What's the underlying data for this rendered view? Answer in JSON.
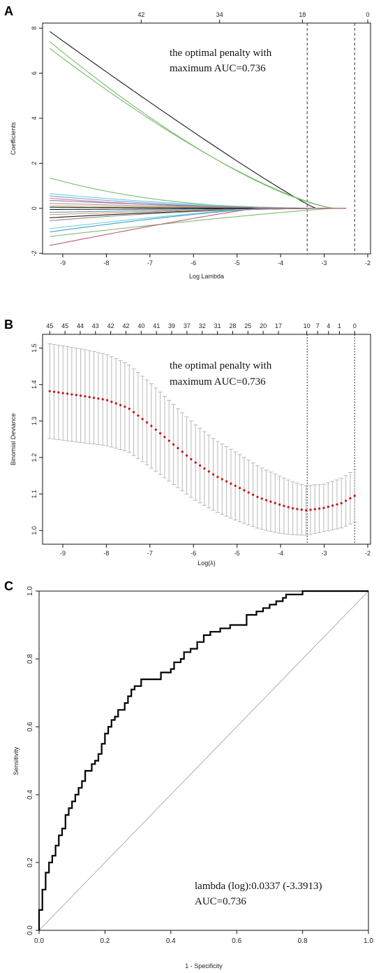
{
  "panels": [
    {
      "letter": "A",
      "chart_data": {
        "type": "line",
        "xlabel": "Log Lambda",
        "ylabel": "Coefficients",
        "xlim": [
          -9.4,
          -2.0
        ],
        "ylim": [
          -1.9,
          8.1
        ],
        "x_ticks": [
          -9,
          -8,
          -7,
          -6,
          -5,
          -4,
          -3,
          -2
        ],
        "y_ticks": [
          -2,
          0,
          2,
          4,
          6,
          8
        ],
        "top_axis": {
          "positions": [
            -7.2,
            -5.4,
            -3.5,
            -2.0
          ],
          "labels": [
            "42",
            "34",
            "18",
            "0"
          ]
        },
        "vlines": [
          -3.39,
          -2.3
        ],
        "annotation": [
          "the optimal penalty with",
          "maximum AUC=0.736"
        ],
        "series": [
          {
            "color": "#1a1a1a",
            "start": 7.85,
            "zero_at": -3.2,
            "shape": 1.08
          },
          {
            "color": "#7dbb6e",
            "start": 7.4,
            "zero_at": -2.75,
            "shape": 1.4
          },
          {
            "color": "#7dbb6e",
            "start": 7.1,
            "zero_at": -2.75,
            "shape": 1.35
          },
          {
            "color": "#7dbb6e",
            "start": 1.35,
            "zero_at": -2.75,
            "shape": 2.6
          },
          {
            "color": "#6fd0d6",
            "start": 0.65,
            "zero_at": -2.75,
            "shape": 1.8
          },
          {
            "color": "#7d9be0",
            "start": 0.55,
            "zero_at": -2.75,
            "shape": 2.0
          },
          {
            "color": "#e07a9a",
            "start": 0.45,
            "zero_at": -2.75,
            "shape": 2.2
          },
          {
            "color": "#8a8a8a",
            "start": 0.35,
            "zero_at": -2.75,
            "shape": 1.6
          },
          {
            "color": "#b48fd6",
            "start": 0.22,
            "zero_at": -2.75,
            "shape": 1.5
          },
          {
            "color": "#d6c24a",
            "start": 0.12,
            "zero_at": -2.75,
            "shape": 1.3
          },
          {
            "color": "#1a1a1a",
            "start": 0.05,
            "zero_at": -2.75,
            "shape": 1.2
          },
          {
            "color": "#1a1a1a",
            "start": -0.05,
            "zero_at": -2.75,
            "shape": 1.2
          },
          {
            "color": "#5a9fd4",
            "start": -0.18,
            "zero_at": -2.75,
            "shape": 1.4
          },
          {
            "color": "#e0a15a",
            "start": -0.28,
            "zero_at": -2.75,
            "shape": 1.5
          },
          {
            "color": "#1a1a1a",
            "start": -0.42,
            "zero_at": -2.75,
            "shape": 1.7
          },
          {
            "color": "#8a8a8a",
            "start": -0.55,
            "zero_at": -2.75,
            "shape": 1.9
          },
          {
            "color": "#3f9fd4",
            "start": -1.05,
            "zero_at": -4.2,
            "shape": 1.3
          },
          {
            "color": "#6fd0d6",
            "start": -0.9,
            "zero_at": -4.4,
            "shape": 1.2
          },
          {
            "color": "#7dbb6e",
            "start": -1.25,
            "zero_at": -2.75,
            "shape": 1.15
          },
          {
            "color": "#c45a78",
            "start": -1.65,
            "zero_at": -4.55,
            "shape": 1.1
          }
        ]
      }
    },
    {
      "letter": "B",
      "chart_data": {
        "type": "scatter",
        "xlabel": "Log(λ)",
        "ylabel": "Binomial Deviance",
        "xlim": [
          -9.4,
          -2.0
        ],
        "ylim": [
          0.97,
          1.53
        ],
        "x_ticks": [
          -9,
          -8,
          -7,
          -6,
          -5,
          -4,
          -3,
          -2
        ],
        "y_ticks": [
          1.0,
          1.1,
          1.2,
          1.3,
          1.4,
          1.5
        ],
        "top_axis": {
          "positions": [
            -9.3,
            -8.95,
            -8.6,
            -8.25,
            -7.9,
            -7.55,
            -7.2,
            -6.85,
            -6.5,
            -6.15,
            -5.8,
            -5.45,
            -5.1,
            -4.75,
            -4.4,
            -4.05,
            -3.4,
            -3.15,
            -2.9,
            -2.65,
            -2.3
          ],
          "labels": [
            "45",
            "45",
            "44",
            "43",
            "42",
            "42",
            "40",
            "41",
            "39",
            "37",
            "32",
            "31",
            "28",
            "25",
            "20",
            "17",
            "10",
            "7",
            "4",
            "1",
            "0"
          ]
        },
        "vlines": [
          -3.39,
          -2.3
        ],
        "annotation": [
          "the optimal penalty with",
          "maximum AUC=0.736"
        ],
        "mean_curve": {
          "x": [
            -9.3,
            -8.5,
            -8.0,
            -7.5,
            -7.0,
            -6.5,
            -6.0,
            -5.5,
            -5.0,
            -4.5,
            -4.0,
            -3.7,
            -3.4,
            -3.0,
            -2.6,
            -2.3
          ],
          "y": [
            1.382,
            1.368,
            1.358,
            1.336,
            1.29,
            1.24,
            1.19,
            1.15,
            1.12,
            1.09,
            1.07,
            1.06,
            1.055,
            1.062,
            1.075,
            1.095
          ]
        },
        "se_curve": {
          "x": [
            -9.3,
            -8.5,
            -8.0,
            -7.5,
            -7.0,
            -6.5,
            -6.0,
            -5.5,
            -5.0,
            -4.5,
            -4.0,
            -3.7,
            -3.4,
            -3.0,
            -2.6,
            -2.3
          ],
          "y": [
            0.13,
            0.128,
            0.125,
            0.12,
            0.116,
            0.11,
            0.104,
            0.098,
            0.093,
            0.085,
            0.078,
            0.072,
            0.068,
            0.065,
            0.068,
            0.072
          ]
        },
        "n_points": 70,
        "point_color": "#cc1111",
        "errorbar_color": "#b8b8b8"
      }
    },
    {
      "letter": "C",
      "chart_data": {
        "type": "line",
        "xlabel": "1 - Specificity",
        "ylabel": "Sensitivity",
        "xlim": [
          0.0,
          1.0
        ],
        "ylim": [
          0.0,
          1.0
        ],
        "x_ticks": [
          "0.0",
          "0.2",
          "0.4",
          "0.6",
          "0.8",
          "1.0"
        ],
        "y_ticks": [
          "0.0",
          "0.2",
          "0.4",
          "0.6",
          "0.8",
          "1.0"
        ],
        "annotation": [
          "lambda (log):0.0337 (-3.3913)",
          "AUC=0.736"
        ],
        "roc": {
          "fpr": [
            0.0,
            0.0,
            0.01,
            0.01,
            0.02,
            0.02,
            0.03,
            0.03,
            0.04,
            0.05,
            0.06,
            0.07,
            0.08,
            0.08,
            0.09,
            0.1,
            0.11,
            0.12,
            0.13,
            0.14,
            0.16,
            0.17,
            0.18,
            0.19,
            0.2,
            0.21,
            0.22,
            0.23,
            0.24,
            0.26,
            0.27,
            0.28,
            0.29,
            0.31,
            0.34,
            0.37,
            0.4,
            0.41,
            0.43,
            0.44,
            0.46,
            0.48,
            0.5,
            0.52,
            0.55,
            0.58,
            0.61,
            0.63,
            0.64,
            0.66,
            0.68,
            0.7,
            0.72,
            0.74,
            0.75,
            0.78,
            0.8,
            0.82,
            0.9,
            1.0
          ],
          "tpr": [
            0.0,
            0.06,
            0.06,
            0.1,
            0.12,
            0.15,
            0.17,
            0.19,
            0.2,
            0.22,
            0.25,
            0.28,
            0.3,
            0.32,
            0.34,
            0.36,
            0.38,
            0.4,
            0.42,
            0.44,
            0.47,
            0.49,
            0.5,
            0.52,
            0.55,
            0.58,
            0.6,
            0.62,
            0.63,
            0.65,
            0.67,
            0.69,
            0.71,
            0.72,
            0.74,
            0.74,
            0.76,
            0.77,
            0.79,
            0.8,
            0.82,
            0.83,
            0.85,
            0.87,
            0.88,
            0.89,
            0.9,
            0.9,
            0.93,
            0.93,
            0.94,
            0.95,
            0.96,
            0.97,
            0.98,
            0.99,
            0.99,
            1.0,
            1.0,
            1.0
          ]
        }
      }
    }
  ]
}
